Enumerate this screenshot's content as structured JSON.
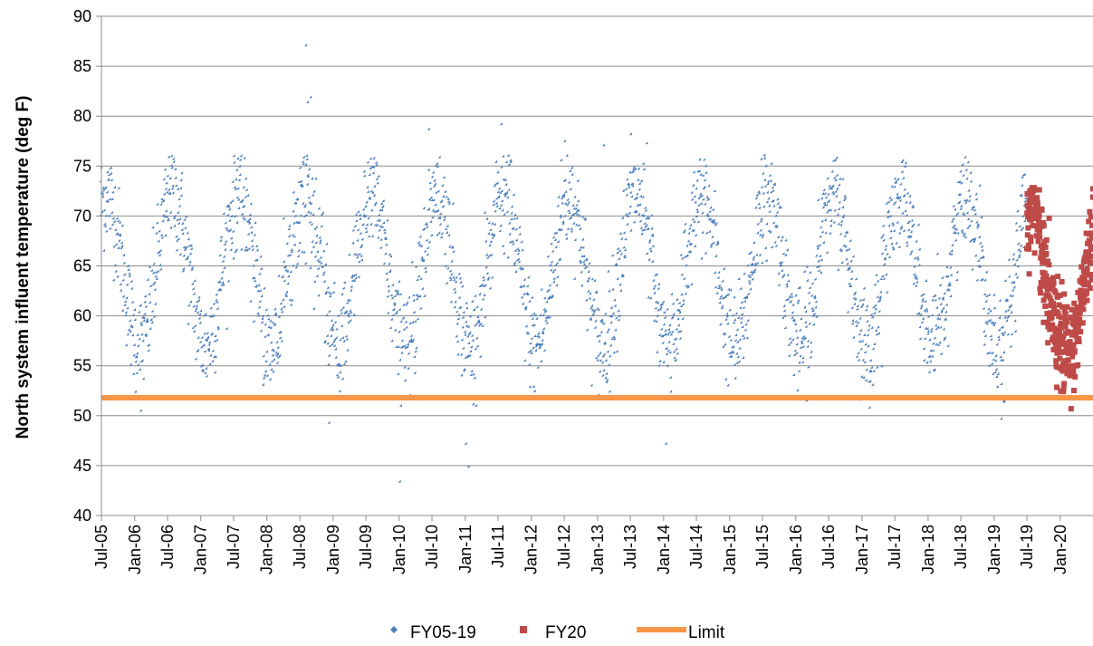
{
  "chart_data": {
    "type": "scatter",
    "title": "",
    "xlabel": "",
    "ylabel": "North system influent temperature (deg F)",
    "ylim": [
      40,
      90
    ],
    "y_ticks": [
      40,
      45,
      50,
      55,
      60,
      65,
      70,
      75,
      80,
      85,
      90
    ],
    "x_range": [
      "2005-07-01",
      "2020-06-30"
    ],
    "x_ticks": [
      "Jul-05",
      "Jan-06",
      "Jul-06",
      "Jan-07",
      "Jul-07",
      "Jan-08",
      "Jul-08",
      "Jan-09",
      "Jul-09",
      "Jan-10",
      "Jul-10",
      "Jan-11",
      "Jul-11",
      "Jan-12",
      "Jul-12",
      "Jan-13",
      "Jul-13",
      "Jan-14",
      "Jul-14",
      "Jan-15",
      "Jul-15",
      "Jan-16",
      "Jul-16",
      "Jan-17",
      "Jul-17",
      "Jan-18",
      "Jul-18",
      "Jan-19",
      "Jul-19",
      "Jan-20"
    ],
    "grid": "horizontal",
    "legend_position": "bottom",
    "series": [
      {
        "name": "FY05-19",
        "marker": "diamond",
        "color": "#4A7EBB",
        "x_range": [
          "2005-07-01",
          "2019-06-30"
        ],
        "seasonal_peak_month": "August",
        "seasonal_trough_month": "February",
        "typical_peak": 72,
        "typical_trough": 57,
        "values_note": "daily readings",
        "outliers": [
          {
            "x": "2006-02-10",
            "y": 50.4
          },
          {
            "x": "2008-08-10",
            "y": 87.0
          },
          {
            "x": "2008-08-20",
            "y": 81.3
          },
          {
            "x": "2008-09-05",
            "y": 81.8
          },
          {
            "x": "2008-12-15",
            "y": 49.2
          },
          {
            "x": "2010-01-10",
            "y": 43.3
          },
          {
            "x": "2010-06-20",
            "y": 78.6
          },
          {
            "x": "2011-01-10",
            "y": 47.1
          },
          {
            "x": "2011-01-25",
            "y": 44.8
          },
          {
            "x": "2011-07-25",
            "y": 79.1
          },
          {
            "x": "2012-07-10",
            "y": 77.4
          },
          {
            "x": "2013-02-10",
            "y": 77.0
          },
          {
            "x": "2013-07-10",
            "y": 78.1
          },
          {
            "x": "2013-10-05",
            "y": 77.2
          },
          {
            "x": "2014-01-20",
            "y": 47.1
          },
          {
            "x": "2015-07-01",
            "y": 75.6
          },
          {
            "x": "2019-02-15",
            "y": 49.6
          }
        ]
      },
      {
        "name": "FY20",
        "marker": "square",
        "color": "#BE4B48",
        "x_range": [
          "2019-07-01",
          "2020-06-30"
        ],
        "max": 72.9,
        "min": 50.7
      },
      {
        "name": "Limit",
        "type": "line",
        "color": "#F79646",
        "y": 51.8
      }
    ]
  }
}
